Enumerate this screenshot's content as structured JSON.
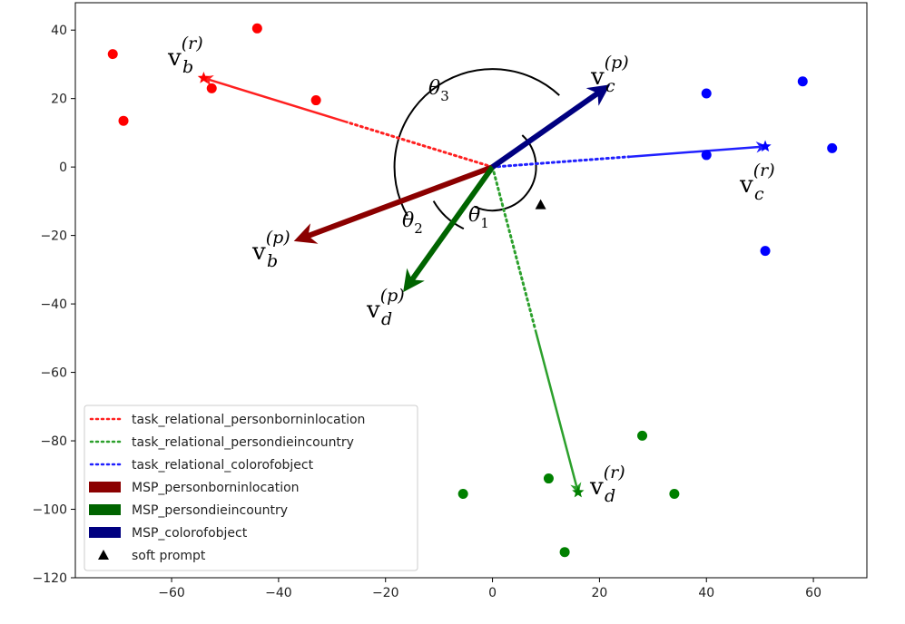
{
  "chart_data": {
    "type": "scatter",
    "title": "",
    "xlabel": "",
    "ylabel": "",
    "xlim": [
      -78,
      70
    ],
    "ylim": [
      -120,
      48
    ],
    "x_ticks": [
      -60,
      -40,
      -20,
      0,
      20,
      40,
      60
    ],
    "y_ticks": [
      40,
      20,
      0,
      -20,
      -40,
      -60,
      -80,
      -100,
      -120
    ],
    "x_tick_labels": [
      "−60",
      "−40",
      "−20",
      "0",
      "20",
      "40",
      "60"
    ],
    "y_tick_labels": [
      "40",
      "20",
      "0",
      "−20",
      "−40",
      "−60",
      "−80",
      "−100",
      "−120"
    ],
    "grid": false,
    "legend_position": "lower-left",
    "origin": [
      0,
      0
    ],
    "point_groups": [
      {
        "color": "#ff0000",
        "points": [
          [
            -71,
            33
          ],
          [
            -69,
            13.5
          ],
          [
            -44,
            40.5
          ],
          [
            -52.5,
            23
          ],
          [
            -33,
            19.5
          ]
        ]
      },
      {
        "color": "#0000ff",
        "points": [
          [
            40,
            21.5
          ],
          [
            40,
            3.5
          ],
          [
            58,
            25
          ],
          [
            63.5,
            5.5
          ],
          [
            51,
            -24.5
          ]
        ]
      },
      {
        "color": "#008000",
        "points": [
          [
            -5.5,
            -95.5
          ],
          [
            10.5,
            -91
          ],
          [
            13.5,
            -112.5
          ],
          [
            28,
            -78.5
          ],
          [
            34,
            -95.5
          ]
        ]
      }
    ],
    "series": [
      {
        "name": "task_relational_personborninlocation",
        "kind": "dotted-arrow",
        "color": "#ff2020",
        "from": [
          0,
          0
        ],
        "to": [
          -54,
          26
        ]
      },
      {
        "name": "task_relational_persondieincountry",
        "kind": "dotted-arrow",
        "color": "#2ca02c",
        "from": [
          0,
          0
        ],
        "to": [
          16,
          -95
        ]
      },
      {
        "name": "task_relational_colorofobject",
        "kind": "dotted-arrow",
        "color": "#2020ff",
        "from": [
          0,
          0
        ],
        "to": [
          51,
          6
        ]
      },
      {
        "name": "MSP_personborninlocation",
        "kind": "solid-arrow",
        "color": "#8b0000",
        "from": [
          0,
          0
        ],
        "to": [
          -36,
          -21
        ]
      },
      {
        "name": "MSP_persondieincountry",
        "kind": "solid-arrow",
        "color": "#006400",
        "from": [
          0,
          0
        ],
        "to": [
          -16,
          -35
        ]
      },
      {
        "name": "MSP_colorofobject",
        "kind": "solid-arrow",
        "color": "#000080",
        "from": [
          0,
          0
        ],
        "to": [
          21,
          23
        ]
      },
      {
        "name": "soft prompt",
        "kind": "marker",
        "color": "#000000",
        "points": [
          [
            9,
            -11
          ]
        ]
      }
    ],
    "stars": [
      {
        "color": "#ff0000",
        "at": [
          -54,
          26
        ]
      },
      {
        "color": "#0000ff",
        "at": [
          51,
          6
        ]
      },
      {
        "color": "#008000",
        "at": [
          16,
          -95
        ]
      }
    ],
    "annotations": {
      "v_b_r": {
        "base": "v",
        "sub": "b",
        "sup": "(r)"
      },
      "v_b_p": {
        "base": "v",
        "sub": "b",
        "sup": "(p)"
      },
      "v_c_p": {
        "base": "v",
        "sub": "c",
        "sup": "(p)"
      },
      "v_c_r": {
        "base": "v",
        "sub": "c",
        "sup": "(r)"
      },
      "v_d_p": {
        "base": "v",
        "sub": "d",
        "sup": "(p)"
      },
      "v_d_r": {
        "base": "v",
        "sub": "d",
        "sup": "(r)"
      },
      "theta1": {
        "base": "θ",
        "sub": "1"
      },
      "theta2": {
        "base": "θ",
        "sub": "2"
      },
      "theta3": {
        "base": "θ",
        "sub": "3"
      }
    }
  }
}
